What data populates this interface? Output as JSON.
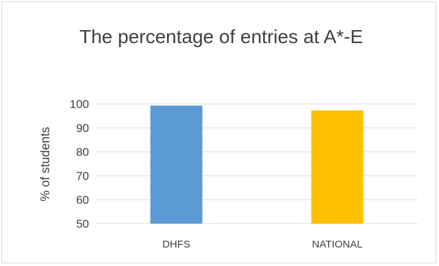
{
  "chart_data": {
    "type": "bar",
    "title": "The percentage of entries at A*-E",
    "xlabel": "",
    "ylabel": "% of students",
    "categories": [
      "DHFS",
      "NATIONAL"
    ],
    "values": [
      99.3,
      97.3
    ],
    "colors": [
      "#5b9bd5",
      "#ffc000"
    ],
    "ylim": [
      50,
      100
    ],
    "yticks": [
      "50",
      "60",
      "70",
      "80",
      "90",
      "100"
    ],
    "grid": true,
    "legend": "none"
  }
}
